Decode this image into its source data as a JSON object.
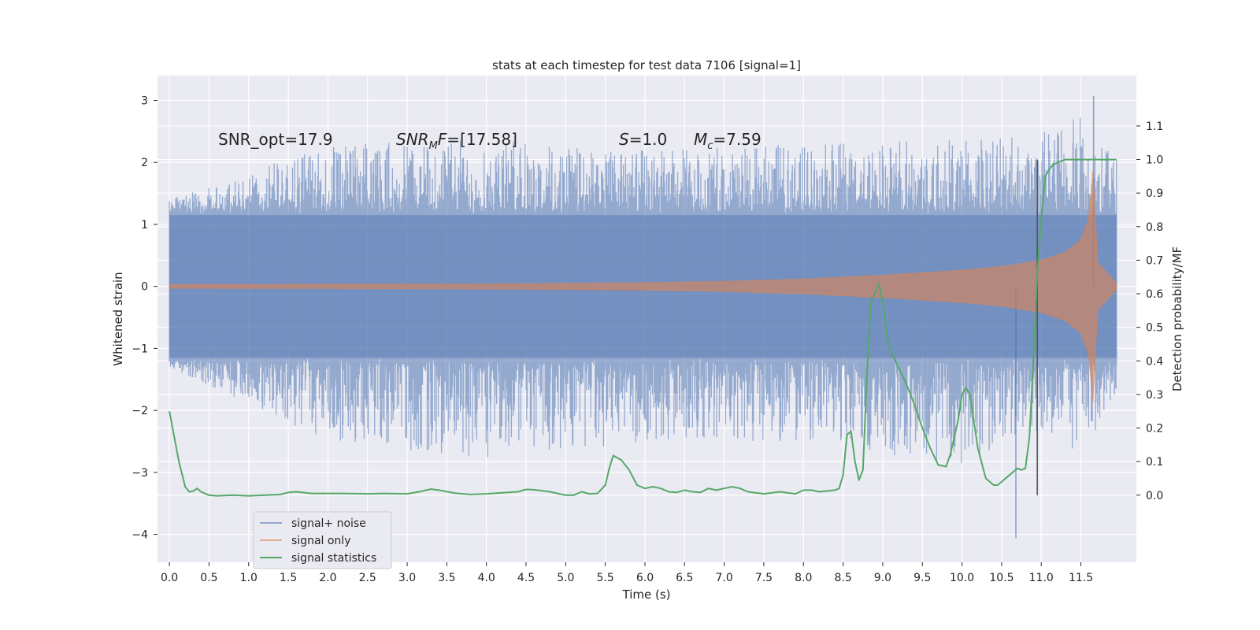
{
  "chart_data": {
    "type": "line",
    "title": "stats at each timestep for test data 7106 [signal=1]",
    "xlabel": "Time (s)",
    "ylabel": "Whitened strain",
    "y2label": "Detection probability/MF",
    "xlim": [
      -0.15,
      12.2
    ],
    "ylim": [
      -4.45,
      3.4
    ],
    "y2lim": [
      -0.2,
      1.25
    ],
    "x_ticks": [
      0.0,
      0.5,
      1.0,
      1.5,
      2.0,
      2.5,
      3.0,
      3.5,
      4.0,
      4.5,
      5.0,
      5.5,
      6.0,
      6.5,
      7.0,
      7.5,
      8.0,
      8.5,
      9.0,
      9.5,
      10.0,
      10.5,
      11.0,
      11.5
    ],
    "x_tick_labels": [
      "0.0",
      "0.5",
      "1.0",
      "1.5",
      "2.0",
      "2.5",
      "3.0",
      "3.5",
      "4.0",
      "4.5",
      "5.0",
      "5.5",
      "6.0",
      "6.5",
      "7.0",
      "7.5",
      "8.0",
      "8.5",
      "9.0",
      "9.5",
      "10.0",
      "10.5",
      "11.0",
      "11.5"
    ],
    "y_ticks": [
      3,
      2,
      1,
      0,
      -1,
      -2,
      -3,
      -4
    ],
    "y_tick_labels": [
      "3",
      "2",
      "1",
      "0",
      "−1",
      "−2",
      "−3",
      "−4"
    ],
    "y2_ticks": [
      1.1,
      1.0,
      0.9,
      0.8,
      0.7,
      0.6,
      0.5,
      0.4,
      0.3,
      0.2,
      0.1,
      0.0
    ],
    "y2_tick_labels": [
      "1.1",
      "1.0",
      "0.9",
      "0.8",
      "0.7",
      "0.6",
      "0.5",
      "0.4",
      "0.3",
      "0.2",
      "0.1",
      "0.0"
    ],
    "grid": true,
    "legend_position": "lower-left",
    "annotations": {
      "snr_opt": "SNR_opt=17.9",
      "snr_mf_sym": "SNR",
      "snr_mf_sub": "M",
      "snr_mf_rest": "F=[17.58]",
      "s_sym": "S",
      "s_rest": "=1.0",
      "mc_sym": "M",
      "mc_sub": "c",
      "mc_rest": "=7.59"
    },
    "series": [
      {
        "name": "signal+ noise",
        "color": "#4c72b0",
        "x_start": 0.0,
        "x_end": 11.95,
        "envelope_description_points": {
          "x": [
            0.0,
            2.0,
            4.0,
            6.0,
            8.0,
            10.0,
            11.0,
            11.5,
            11.9
          ],
          "y_upper": [
            1.4,
            2.3,
            2.4,
            2.2,
            2.3,
            2.4,
            2.5,
            2.8,
            2.1
          ],
          "y_lower": [
            -1.3,
            -2.5,
            -2.8,
            -2.5,
            -2.5,
            -2.9,
            -2.3,
            -2.8,
            -1.8
          ]
        },
        "extremes": {
          "max": {
            "x": 11.66,
            "y": 3.07
          },
          "min": {
            "x": 10.68,
            "y": -4.06
          }
        }
      },
      {
        "name": "signal only",
        "color": "#dd8452",
        "x_start": 0.0,
        "x_end": 11.95,
        "amplitude_points": {
          "x": [
            0.0,
            4.0,
            6.0,
            7.0,
            8.0,
            9.0,
            10.0,
            10.5,
            11.0,
            11.3,
            11.5,
            11.6,
            11.66,
            11.7,
            11.95
          ],
          "y": [
            0.03,
            0.04,
            0.06,
            0.08,
            0.12,
            0.18,
            0.26,
            0.32,
            0.42,
            0.55,
            0.75,
            1.1,
            2.0,
            0.4,
            0.05
          ]
        }
      },
      {
        "name": "signal statistics",
        "color": "#55a868",
        "axis": "y2",
        "x": [
          0.0,
          0.12,
          0.2,
          0.25,
          0.3,
          0.35,
          0.4,
          0.5,
          0.6,
          0.8,
          1.0,
          1.2,
          1.4,
          1.5,
          1.6,
          1.8,
          2.0,
          2.2,
          2.5,
          2.7,
          3.0,
          3.15,
          3.3,
          3.4,
          3.6,
          3.8,
          4.0,
          4.2,
          4.4,
          4.5,
          4.6,
          4.8,
          5.0,
          5.1,
          5.2,
          5.3,
          5.4,
          5.5,
          5.55,
          5.6,
          5.7,
          5.8,
          5.9,
          6.0,
          6.1,
          6.2,
          6.3,
          6.4,
          6.5,
          6.6,
          6.7,
          6.8,
          6.9,
          7.0,
          7.1,
          7.2,
          7.3,
          7.5,
          7.7,
          7.9,
          8.0,
          8.1,
          8.2,
          8.4,
          8.45,
          8.5,
          8.55,
          8.6,
          8.65,
          8.7,
          8.75,
          8.8,
          8.85,
          8.9,
          8.95,
          9.0,
          9.05,
          9.1,
          9.2,
          9.3,
          9.4,
          9.5,
          9.6,
          9.7,
          9.8,
          9.85,
          9.9,
          9.95,
          10.0,
          10.05,
          10.1,
          10.15,
          10.2,
          10.3,
          10.4,
          10.45,
          10.5,
          10.6,
          10.7,
          10.75,
          10.8,
          10.85,
          10.9,
          10.95,
          11.0,
          11.05,
          11.1,
          11.15,
          11.2,
          11.25,
          11.3,
          11.4,
          11.5,
          11.6,
          11.7,
          11.8,
          11.95
        ],
        "y": [
          0.25,
          0.1,
          0.025,
          0.01,
          0.012,
          0.02,
          0.01,
          0.0,
          -0.002,
          0.0,
          -0.002,
          0.0,
          0.002,
          0.008,
          0.01,
          0.005,
          0.005,
          0.005,
          0.004,
          0.005,
          0.004,
          0.01,
          0.018,
          0.015,
          0.006,
          0.002,
          0.004,
          0.007,
          0.01,
          0.017,
          0.016,
          0.01,
          0.0,
          0.0,
          0.01,
          0.004,
          0.005,
          0.03,
          0.08,
          0.118,
          0.105,
          0.075,
          0.03,
          0.02,
          0.025,
          0.02,
          0.01,
          0.008,
          0.015,
          0.01,
          0.008,
          0.02,
          0.015,
          0.02,
          0.025,
          0.02,
          0.01,
          0.004,
          0.01,
          0.004,
          0.015,
          0.015,
          0.01,
          0.015,
          0.02,
          0.06,
          0.18,
          0.19,
          0.1,
          0.045,
          0.075,
          0.35,
          0.58,
          0.6,
          0.63,
          0.58,
          0.48,
          0.43,
          0.38,
          0.33,
          0.27,
          0.2,
          0.14,
          0.09,
          0.085,
          0.12,
          0.17,
          0.22,
          0.3,
          0.32,
          0.3,
          0.22,
          0.14,
          0.05,
          0.03,
          0.03,
          0.04,
          0.06,
          0.08,
          0.075,
          0.08,
          0.17,
          0.4,
          0.66,
          0.82,
          0.95,
          0.97,
          0.985,
          0.99,
          0.995,
          1.0,
          1.0,
          1.0,
          1.0,
          1.0,
          1.0,
          1.0
        ]
      }
    ],
    "vertical_marker": {
      "x": 10.95,
      "y_top": 1.0,
      "y_bottom": 0.0,
      "color": "#555555"
    }
  }
}
